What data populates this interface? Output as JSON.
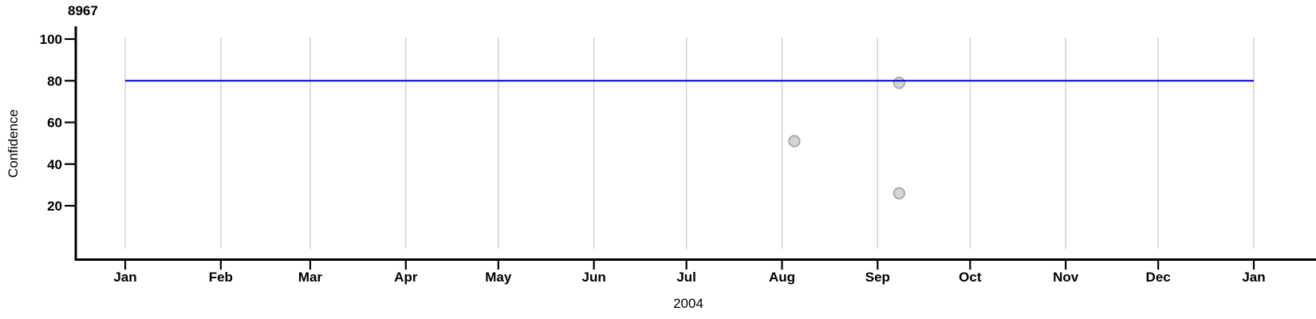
{
  "chart_data": {
    "type": "scatter",
    "title": "8967",
    "xlabel": "2004",
    "ylabel": "Confidence",
    "ylim": [
      0,
      100
    ],
    "y_ticks": [
      100,
      80,
      60,
      40,
      20
    ],
    "grid": "vertical-monthly",
    "legend": "none",
    "x_axis": {
      "unit": "date",
      "start": "2004-01-01",
      "end": "2005-01-01",
      "total_days": 366,
      "tick_labels": [
        "Jan",
        "Feb",
        "Mar",
        "Apr",
        "May",
        "Jun",
        "Jul",
        "Aug",
        "Sep",
        "Oct",
        "Nov",
        "Dec",
        "Jan"
      ],
      "tick_day_offsets": [
        0,
        31,
        60,
        91,
        121,
        152,
        182,
        213,
        244,
        274,
        305,
        335,
        366
      ]
    },
    "reference_line": {
      "value": 80,
      "from_day": 0,
      "to_day": 366
    },
    "points": [
      {
        "date": "2004-08-05",
        "days_from_jan1": 217,
        "confidence": 51
      },
      {
        "date": "2004-09-08",
        "days_from_jan1": 251,
        "confidence": 79
      },
      {
        "date": "2004-09-08",
        "days_from_jan1": 251,
        "confidence": 26
      }
    ]
  },
  "colors": {
    "reference_line": "#0000CC",
    "grid": "#D2D2D2",
    "point_fill": "#D4D4D4",
    "point_stroke": "#A0A0A0",
    "axis": "#000000",
    "text": "#000000",
    "background": "#FFFFFF"
  }
}
